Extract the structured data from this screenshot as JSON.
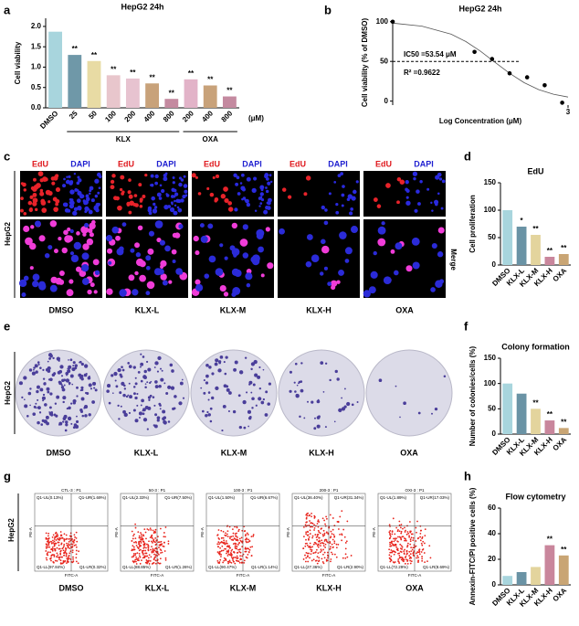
{
  "panel_letters": [
    "a",
    "b",
    "c",
    "d",
    "e",
    "f",
    "g",
    "h"
  ],
  "chart_data": [
    {
      "type": "bar",
      "title": "HepG2 24h",
      "y_label": "Cell viability",
      "categories": [
        "DMSO",
        "25",
        "50",
        "100",
        "200",
        "400",
        "800",
        "200",
        "400",
        "800"
      ],
      "values": [
        1.87,
        1.3,
        1.15,
        0.8,
        0.72,
        0.6,
        0.22,
        0.7,
        0.55,
        0.28
      ],
      "annotations": [
        null,
        "**",
        "**",
        "**",
        "**",
        "**",
        "**",
        "**",
        "**",
        "**"
      ],
      "colors": [
        "#a8d5dd",
        "#6f98a8",
        "#e8dba4",
        "#e8c6cc",
        "#e7c3d0",
        "#c8a27a",
        "#c48aa0",
        "#e2b3c8",
        "#c8a27a",
        "#c48aa0"
      ],
      "group_labels": [
        "KLX",
        "OXA"
      ],
      "unit_label": "(μM)",
      "ylim": [
        0,
        2.2
      ],
      "yticks": [
        {
          "value": 0,
          "label": "0.0"
        },
        {
          "value": 0.5,
          "label": "0.5"
        },
        {
          "value": 1,
          "label": "1.0"
        },
        {
          "value": 1.5,
          "label": "1.5"
        },
        {
          "value": 2,
          "label": "2.0"
        }
      ]
    },
    {
      "type": "scatter",
      "title": "HepG2 24h",
      "y_label": "Cell viability (% of DMSO)",
      "x_label": "Log Concentration (μM)",
      "x": [
        0,
        1.4,
        1.7,
        2.0,
        2.3,
        2.6,
        2.9
      ],
      "values": [
        100,
        62,
        53,
        35,
        30,
        20,
        -2
      ],
      "fit": {
        "x": [
          0,
          0.5,
          1,
          1.25,
          1.5,
          1.73,
          2,
          2.25,
          2.5,
          2.75,
          3
        ],
        "values": [
          98.2,
          94.4,
          84.3,
          75.1,
          63,
          50,
          35,
          23.2,
          14.5,
          8.7,
          5.1
        ]
      },
      "reference_line": 50,
      "annotations": [
        "IC50 =53.54 μM",
        "R² =0.9622"
      ],
      "xlim": [
        0,
        3
      ],
      "xticks": [
        3
      ],
      "ylim": [
        -5,
        102
      ],
      "yticks": [
        0,
        50,
        100
      ]
    },
    {
      "type": "bar",
      "title": "EdU",
      "y_label": "Cell proliferation",
      "categories": [
        "DMSO",
        "KLX-L",
        "KLX-M",
        "KLX-H",
        "OXA"
      ],
      "values": [
        100,
        70,
        55,
        15,
        20
      ],
      "annotations": [
        null,
        "*",
        "**",
        "**",
        "**"
      ],
      "colors": [
        "#a8d5dd",
        "#6a93a5",
        "#e3d49d",
        "#c9869c",
        "#c9a574"
      ],
      "ylim": [
        0,
        150
      ],
      "yticks": [
        0,
        50,
        100,
        150
      ]
    },
    {
      "type": "bar",
      "title": "Colony formation",
      "y_label": "Number of colonies/cells (%)",
      "categories": [
        "DMSO",
        "KLX-L",
        "KLX-M",
        "KLX-H",
        "OXA"
      ],
      "values": [
        100,
        80,
        50,
        27,
        12
      ],
      "annotations": [
        null,
        null,
        "**",
        "**",
        "**"
      ],
      "colors": [
        "#a8d5dd",
        "#6a93a5",
        "#e3d49d",
        "#c9869c",
        "#c9a574"
      ],
      "ylim": [
        0,
        150
      ],
      "yticks": [
        0,
        50,
        100,
        150
      ]
    },
    {
      "type": "bar",
      "title": "Flow cytometry",
      "y_label": "Annexin-FITC/PI positive cells (%)",
      "categories": [
        "DMSO",
        "KLX-L",
        "KLX-M",
        "KLX-H",
        "OXA"
      ],
      "values": [
        7,
        10,
        14,
        31,
        23
      ],
      "annotations": [
        null,
        null,
        null,
        "**",
        "**"
      ],
      "colors": [
        "#a8d5dd",
        "#6a93a5",
        "#e3d49d",
        "#c9869c",
        "#c9a574"
      ],
      "ylim": [
        0,
        60
      ],
      "yticks": [
        0,
        20,
        40,
        60
      ]
    }
  ],
  "edu_panel": {
    "row_label": "HepG2",
    "side_label": "Merge",
    "stain_labels": [
      "EdU",
      "DAPI"
    ],
    "groups": [
      "DMSO",
      "KLX-L",
      "KLX-M",
      "KLX-H",
      "OXA"
    ]
  },
  "colony_panel": {
    "row_label": "HepG2",
    "groups": [
      "DMSO",
      "KLX-L",
      "KLX-M",
      "KLX-H",
      "OXA"
    ]
  },
  "flow_panel": {
    "row_label": "HepG2",
    "x_axis": "FITC-A",
    "y_axis": "PE-A",
    "plots": [
      {
        "group": "DMSO",
        "sample": "CTL-3 : P1",
        "UL": "Q1-UL(0.13%)",
        "UR": "Q1-UR(1.69%)",
        "LL": "Q1-LL(97.84%)",
        "LR": "Q1-LR(0.32%)"
      },
      {
        "group": "KLX-L",
        "sample": "50-3 : P1",
        "UL": "Q1-UL(2.33%)",
        "UR": "Q1-UR(7.50%)",
        "LL": "Q1-LL(88.85%)",
        "LR": "Q1-LR(1.26%)"
      },
      {
        "group": "KLX-M",
        "sample": "100-3 : P1",
        "UL": "Q1-UL(1.50%)",
        "UR": "Q1-UR(6.67%)",
        "LL": "Q1-LL(90.47%)",
        "LR": "Q1-LR(1.14%)"
      },
      {
        "group": "KLX-H",
        "sample": "200-3 : P1",
        "UL": "Q1-UL(36.40%)",
        "UR": "Q1-UR(31.34%)",
        "LL": "Q1-LL(27.36%)",
        "LR": "Q1-LR(2.90%)"
      },
      {
        "group": "OXA",
        "sample": "OXI-3 : P1",
        "UL": "Q1-UL(1.89%)",
        "UR": "Q1-UR(17.03%)",
        "LL": "Q1-LL(72.29%)",
        "LR": "Q1-LR(8.69%)"
      }
    ]
  }
}
